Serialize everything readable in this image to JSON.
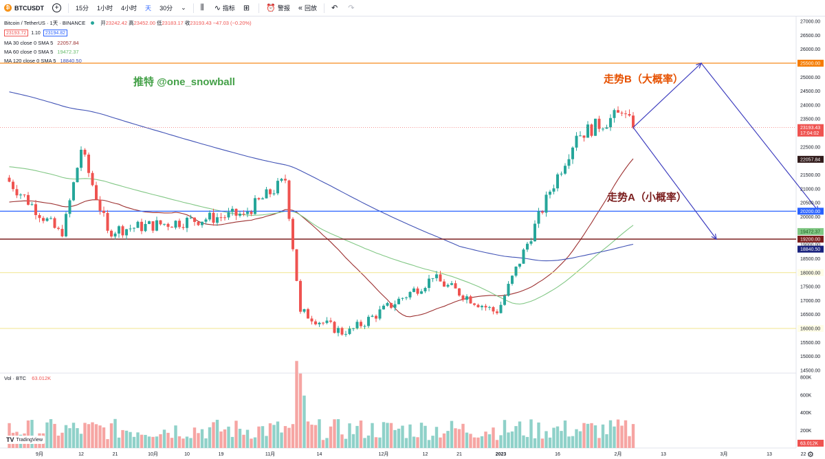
{
  "toolbar": {
    "symbol": "BTCUSDT",
    "symbol_icon": "bitcoin-logo",
    "intervals": [
      "15分",
      "1小时",
      "4小时",
      "天",
      "30分"
    ],
    "active_interval": "天",
    "indicators_label": "指标",
    "alert_label": "警报",
    "replay_label": "回放"
  },
  "legend": {
    "title": "Bitcoin / TetherUS · 1天 · BINANCE",
    "open_label": "开",
    "open": "23242.42",
    "high_label": "高",
    "high": "23452.00",
    "low_label": "低",
    "low": "23183.17",
    "close_label": "收",
    "close": "23193.43",
    "change": "−47.03 (−0.20%)",
    "sell_price": "23193.72",
    "spread": "1.10",
    "buy_price": "23194.82",
    "ma30_label": "MA 30 close 0 SMA 5",
    "ma30_value": "22057.84",
    "ma60_label": "MA 60 close 0 SMA 5",
    "ma60_value": "19472.37",
    "ma120_label": "MA 120 close 0 SMA 5",
    "ma120_value": "18840.50"
  },
  "annotations": {
    "watermark": "推特 @one_snowball",
    "trend_b": "走势B（大概率）",
    "trend_a": "走势A（小概率）"
  },
  "volume_legend": {
    "label": "Vol · BTC",
    "value": "63.012K"
  },
  "tradingview_logo": "TradingView",
  "colors": {
    "up": "#26a69a",
    "down": "#ef5350",
    "vol_up": "#8fd1c9",
    "vol_down": "#f6a5a3",
    "ma30": "#9c2f2f",
    "ma60": "#81c784",
    "ma120": "#3f51b5",
    "level_25500": "#f57c00",
    "level_20200": "#2962ff",
    "level_19200": "#7b1e1e",
    "level_soft": "#f0e68c",
    "projection": "#3f3fbf"
  },
  "chart_data": [
    {
      "type": "candlestick",
      "title": "Bitcoin / TetherUS · 1天 · BINANCE",
      "ylim": [
        14500,
        27000
      ],
      "y_ticks": [
        "27000.00",
        "26500.00",
        "26000.00",
        "25500.00",
        "25000.00",
        "24500.00",
        "24000.00",
        "23500.00",
        "23000.00",
        "22500.00",
        "22000.00",
        "21500.00",
        "21000.00",
        "20500.00",
        "20000.00",
        "19500.00",
        "19000.00",
        "18500.00",
        "18000.00",
        "17500.00",
        "17000.00",
        "16500.00",
        "16000.00",
        "15500.00",
        "15000.00",
        "14500.00"
      ],
      "x_ticks": [
        "9月",
        "12",
        "21",
        "10月",
        "10",
        "19",
        "11月",
        "14",
        "12月",
        "12",
        "21",
        "2023",
        "16",
        "2月",
        "13",
        "3月",
        "13",
        "22"
      ],
      "ohlc_keypoints": [
        {
          "date": "2022-08-23",
          "close": 21400
        },
        {
          "date": "2022-09-07",
          "close": 19300
        },
        {
          "date": "2022-09-12",
          "close": 22400
        },
        {
          "date": "2022-09-19",
          "close": 19500
        },
        {
          "date": "2022-10-25",
          "close": 20100
        },
        {
          "date": "2022-11-05",
          "close": 21300
        },
        {
          "date": "2022-11-09",
          "close": 16600
        },
        {
          "date": "2022-11-21",
          "close": 15800
        },
        {
          "date": "2022-12-14",
          "close": 17800
        },
        {
          "date": "2022-12-31",
          "close": 16550
        },
        {
          "date": "2023-01-14",
          "close": 20900
        },
        {
          "date": "2023-01-21",
          "close": 22900
        },
        {
          "date": "2023-02-02",
          "close": 23700
        },
        {
          "date": "2023-02-05",
          "close": 23193.43
        }
      ],
      "horizontal_levels": [
        {
          "value": 25500,
          "label": "25500.00"
        },
        {
          "value": 20200,
          "label": "20200.00"
        },
        {
          "value": 19200,
          "label": "19200.00"
        },
        {
          "value": 18000,
          "label": "18000.00"
        },
        {
          "value": 16000,
          "label": "16000.00"
        }
      ],
      "price_tags": [
        {
          "value": 23193.43,
          "label": "23193.43",
          "sublabel": "17:04:02"
        },
        {
          "value": 22057.84,
          "label": "22057.84"
        },
        {
          "value": 19472.37,
          "label": "19472.37"
        },
        {
          "value": 18840.5,
          "label": "18840.50"
        }
      ],
      "projections": [
        {
          "name": "走势B",
          "points": [
            [
              "2023-02-05",
              23200
            ],
            [
              "2023-02-23",
              25500
            ],
            [
              "2023-03-26",
              20200
            ]
          ]
        },
        {
          "name": "走势A",
          "points": [
            [
              "2023-02-05",
              23200
            ],
            [
              "2023-02-27",
              19200
            ]
          ]
        }
      ]
    },
    {
      "type": "bar",
      "title": "Vol · BTC",
      "ylim": [
        0,
        800000
      ],
      "y_ticks": [
        "800K",
        "600K",
        "400K",
        "200K"
      ],
      "last_value": "63.012K"
    }
  ]
}
